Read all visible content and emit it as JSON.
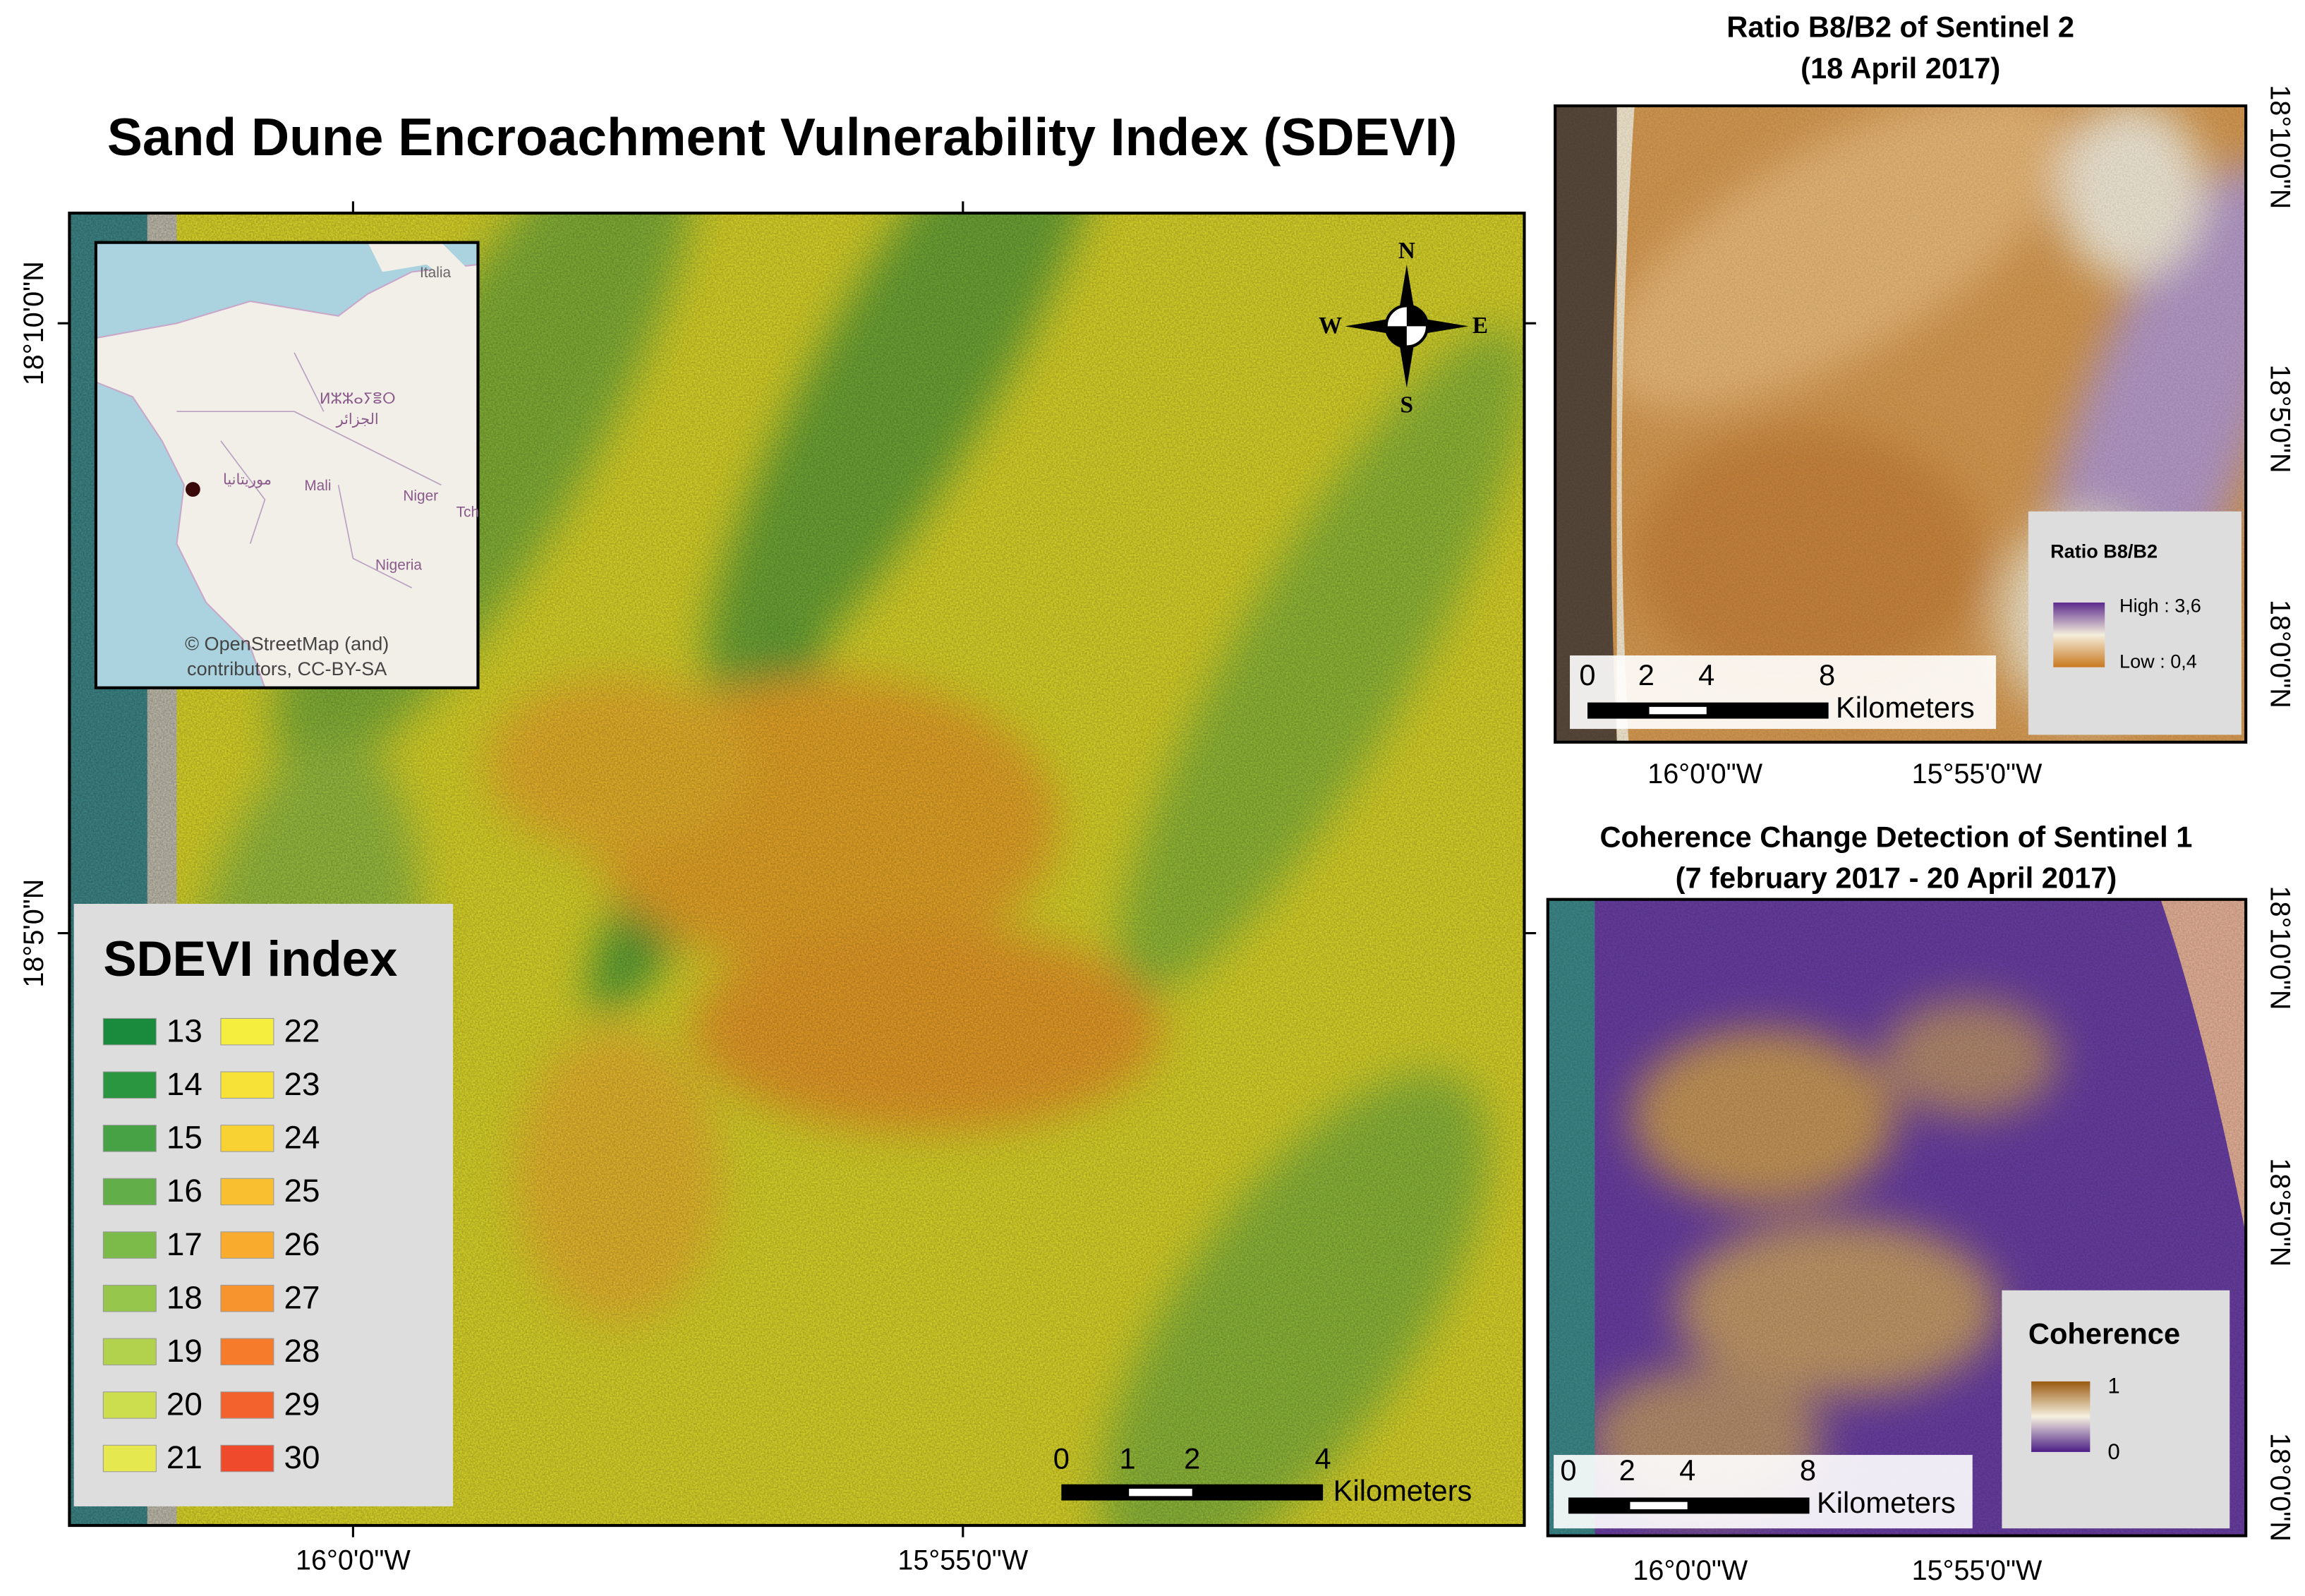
{
  "main_map": {
    "title": "Sand Dune Encroachment Vulnerability Index (SDEVI)",
    "lon_labels": [
      "16°0'0\"W",
      "15°55'0\"W"
    ],
    "lat_labels": [
      "18°10'0\"N",
      "18°5'0\"N"
    ],
    "north_arrow": {
      "n": "N",
      "s": "S",
      "e": "E",
      "w": "W"
    },
    "scale_bar": {
      "ticks": [
        0,
        1,
        2,
        4
      ],
      "unit": "Kilometers"
    },
    "legend": {
      "title": "SDEVI index",
      "classes": [
        {
          "value": 13,
          "color": "#1a8a3c"
        },
        {
          "value": 14,
          "color": "#2b9640"
        },
        {
          "value": 15,
          "color": "#47a245"
        },
        {
          "value": 16,
          "color": "#62ae48"
        },
        {
          "value": 17,
          "color": "#7cba4a"
        },
        {
          "value": 18,
          "color": "#97c64c"
        },
        {
          "value": 19,
          "color": "#b2d24d"
        },
        {
          "value": 20,
          "color": "#ccdd4e"
        },
        {
          "value": 21,
          "color": "#e6e84f"
        },
        {
          "value": 22,
          "color": "#f5ee3e"
        },
        {
          "value": 23,
          "color": "#f7e238"
        },
        {
          "value": 24,
          "color": "#f8d233"
        },
        {
          "value": 25,
          "color": "#f9bf30"
        },
        {
          "value": 26,
          "color": "#f9ab2e"
        },
        {
          "value": 27,
          "color": "#f8942d"
        },
        {
          "value": 28,
          "color": "#f67c2c"
        },
        {
          "value": 29,
          "color": "#f3622c"
        },
        {
          "value": 30,
          "color": "#ef4a2c"
        }
      ]
    },
    "inset": {
      "labels": [
        "Italia",
        "ⵍⵣⵣⴰⵢⴻⵔ",
        "الجزائر",
        "موريتانيا",
        "Mali",
        "Niger",
        "Nigeria",
        "Tch"
      ],
      "attribution_1": "© OpenStreetMap (and)",
      "attribution_2": "contributors, CC-BY-SA"
    }
  },
  "ratio_map": {
    "title_1": "Ratio B8/B2 of Sentinel 2",
    "title_2": "(18 April 2017)",
    "lon_labels": [
      "16°0'0\"W",
      "15°55'0\"W"
    ],
    "lat_labels": [
      "18°10'0\"N",
      "18°5'0\"N",
      "18°0'0\"N"
    ],
    "scale_bar": {
      "ticks": [
        0,
        2,
        4,
        8
      ],
      "unit": "Kilometers"
    },
    "legend": {
      "title": "Ratio B8/B2",
      "high": "High : 3,6",
      "low": "Low : 0,4"
    }
  },
  "coherence_map": {
    "title_1": "Coherence Change Detection of Sentinel 1",
    "title_2": "(7 february 2017 - 20 April 2017)",
    "lon_labels": [
      "16°0'0\"W",
      "15°55'0\"W"
    ],
    "lat_labels": [
      "18°10'0\"N",
      "18°5'0\"N",
      "18°0'0\"N"
    ],
    "scale_bar": {
      "ticks": [
        0,
        2,
        4,
        8
      ],
      "unit": "Kilometers"
    },
    "legend": {
      "title": "Coherence",
      "high": "1",
      "low": "0"
    }
  }
}
